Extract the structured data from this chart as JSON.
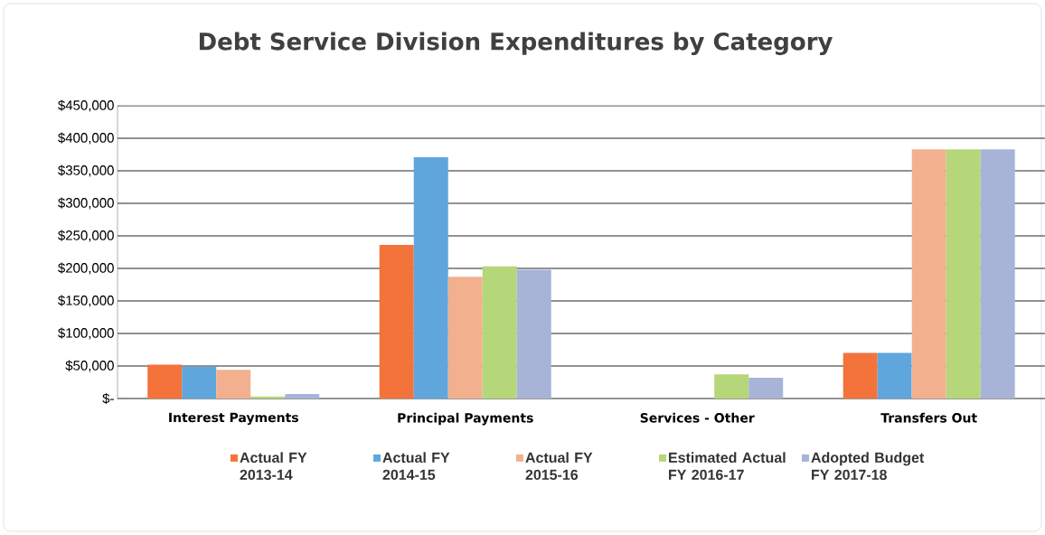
{
  "chart_data": {
    "type": "bar",
    "title": "Debt Service Division Expenditures by Category",
    "categories": [
      "Interest Payments",
      "Principal Payments",
      "Services - Other",
      "Transfers Out"
    ],
    "series": [
      {
        "name": "Actual FY 2013-14",
        "color": "#f4733a",
        "values": [
          52000,
          236000,
          0,
          70000
        ]
      },
      {
        "name": "Actual FY 2014-15",
        "color": "#5fa6dc",
        "values": [
          49000,
          371000,
          0,
          70000
        ]
      },
      {
        "name": "Actual FY 2015-16",
        "color": "#f2b08f",
        "values": [
          44000,
          187000,
          0,
          383000
        ]
      },
      {
        "name": "Estimated Actual FY 2016-17",
        "color": "#b5d77a",
        "values": [
          3000,
          203000,
          37000,
          383000
        ]
      },
      {
        "name": "Adopted Budget FY 2017-18",
        "color": "#a7b4d8",
        "values": [
          7000,
          198000,
          32000,
          383000
        ]
      }
    ],
    "ylim": [
      0,
      450000
    ],
    "yticks": [
      {
        "value": 0,
        "label": "$-"
      },
      {
        "value": 50000,
        "label": "$50,000"
      },
      {
        "value": 100000,
        "label": "$100,000"
      },
      {
        "value": 150000,
        "label": "$150,000"
      },
      {
        "value": 200000,
        "label": "$200,000"
      },
      {
        "value": 250000,
        "label": "$250,000"
      },
      {
        "value": 300000,
        "label": "$300,000"
      },
      {
        "value": 350000,
        "label": "$350,000"
      },
      {
        "value": 400000,
        "label": "$400,000"
      },
      {
        "value": 450000,
        "label": "$450,000"
      }
    ],
    "grid": "y",
    "legend": "bottom"
  }
}
